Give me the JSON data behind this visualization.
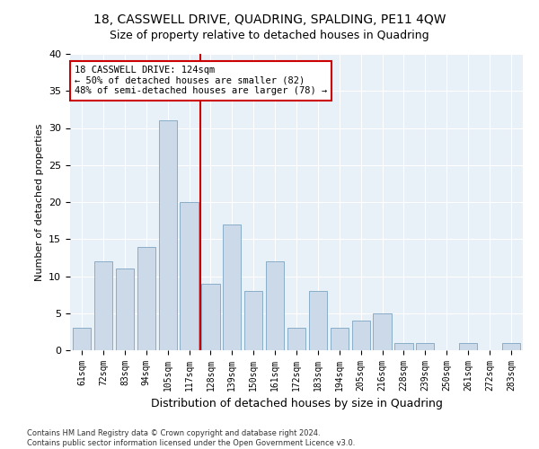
{
  "title": "18, CASSWELL DRIVE, QUADRING, SPALDING, PE11 4QW",
  "subtitle": "Size of property relative to detached houses in Quadring",
  "xlabel": "Distribution of detached houses by size in Quadring",
  "ylabel": "Number of detached properties",
  "categories": [
    "61sqm",
    "72sqm",
    "83sqm",
    "94sqm",
    "105sqm",
    "117sqm",
    "128sqm",
    "139sqm",
    "150sqm",
    "161sqm",
    "172sqm",
    "183sqm",
    "194sqm",
    "205sqm",
    "216sqm",
    "228sqm",
    "239sqm",
    "250sqm",
    "261sqm",
    "272sqm",
    "283sqm"
  ],
  "values": [
    3,
    12,
    11,
    14,
    31,
    20,
    9,
    17,
    8,
    12,
    3,
    8,
    3,
    4,
    5,
    1,
    1,
    0,
    1,
    0,
    1
  ],
  "bar_color": "#ccd9e8",
  "bar_edge_color": "#8aaec8",
  "vline_x_index": 6,
  "vline_color": "#cc0000",
  "annotation_line1": "18 CASSWELL DRIVE: 124sqm",
  "annotation_line2": "← 50% of detached houses are smaller (82)",
  "annotation_line3": "48% of semi-detached houses are larger (78) →",
  "annotation_box_color": "#ffffff",
  "annotation_box_edge": "#cc0000",
  "ylim": [
    0,
    40
  ],
  "yticks": [
    0,
    5,
    10,
    15,
    20,
    25,
    30,
    35,
    40
  ],
  "bg_color": "#e8f0f8",
  "footnote_line1": "Contains HM Land Registry data © Crown copyright and database right 2024.",
  "footnote_line2": "Contains public sector information licensed under the Open Government Licence v3.0.",
  "title_fontsize": 10,
  "subtitle_fontsize": 9
}
